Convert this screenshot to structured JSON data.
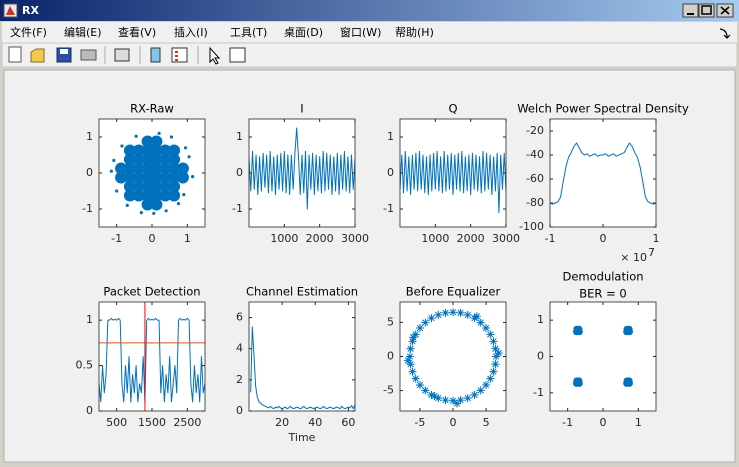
{
  "window": {
    "title": "RX",
    "menu": [
      "文件(F)",
      "编辑(E)",
      "查看(V)",
      "插入(I)",
      "工具(T)",
      "桌面(D)",
      "窗口(W)",
      "帮助(H)"
    ]
  },
  "chart_data": [
    {
      "type": "scatter",
      "title": "RX-Raw",
      "xlim": [
        -1.5,
        1.5
      ],
      "xticks": [
        -1,
        0,
        1
      ],
      "ylim": [
        -1.5,
        1.5
      ],
      "yticks": [
        -1,
        0,
        1
      ],
      "series": [
        {
          "color": "#0072bd",
          "marker": "dot",
          "marker_size": 6,
          "x": [
            0.125,
            0.125,
            0.125,
            0.125,
            0.375,
            0.375,
            0.375,
            0.625,
            0.625,
            0.625,
            0.875,
            -0.125,
            -0.125,
            -0.125,
            -0.125,
            -0.375,
            -0.375,
            -0.375,
            -0.625,
            -0.625,
            -0.625,
            -0.875,
            0.125,
            0.125,
            0.125,
            0.125,
            0.375,
            0.375,
            0.375,
            0.625,
            0.625,
            0.625,
            0.875,
            -0.125,
            -0.125,
            -0.125,
            -0.125,
            -0.375,
            -0.375,
            -0.375,
            -0.625,
            -0.625,
            -0.625,
            -0.875
          ],
          "values": [
            0.125,
            0.375,
            0.625,
            0.875,
            0.125,
            0.375,
            0.625,
            0.125,
            0.375,
            0.625,
            0.125,
            0.125,
            0.375,
            0.625,
            0.875,
            0.125,
            0.375,
            0.625,
            0.125,
            0.375,
            0.625,
            0.125,
            -0.125,
            -0.375,
            -0.625,
            -0.875,
            -0.125,
            -0.375,
            -0.625,
            -0.125,
            -0.375,
            -0.625,
            -0.125,
            -0.125,
            -0.375,
            -0.625,
            -0.875,
            -0.125,
            -0.375,
            -0.625,
            -0.125,
            -0.375,
            -0.625,
            -0.125
          ]
        },
        {
          "color": "#0072bd",
          "marker": "dot",
          "marker_size": 1.6,
          "x": [
            1.05,
            -1.08,
            0.55,
            -0.45,
            0.2,
            -0.85,
            0.9,
            -1.0,
            0.4,
            -0.3,
            0.75,
            -0.7,
            1.15,
            -1.15,
            0.95,
            0.05
          ],
          "values": [
            0.45,
            0.35,
            1.0,
            1.02,
            1.1,
            0.75,
            -0.6,
            -0.5,
            -1.05,
            -1.1,
            -0.85,
            -0.9,
            -0.1,
            0.05,
            0.7,
            -1.12
          ]
        }
      ]
    },
    {
      "type": "line",
      "title": "I",
      "xlim": [
        0,
        3000
      ],
      "xticks": [
        1000,
        2000,
        3000
      ],
      "ylim": [
        -1.5,
        1.5
      ],
      "yticks": [
        -1,
        0,
        1
      ],
      "series": [
        {
          "color": "#0072bd",
          "x": [
            0,
            50,
            100,
            150,
            200,
            250,
            300,
            350,
            400,
            450,
            500,
            550,
            600,
            650,
            700,
            750,
            800,
            850,
            900,
            950,
            1000,
            1050,
            1100,
            1150,
            1200,
            1250,
            1300,
            1350,
            1400,
            1450,
            1500,
            1550,
            1600,
            1650,
            1700,
            1750,
            1800,
            1850,
            1900,
            1950,
            2000,
            2050,
            2100,
            2150,
            2200,
            2250,
            2300,
            2350,
            2400,
            2450,
            2500,
            2550,
            2600,
            2650,
            2700,
            2750,
            2800,
            2850,
            2900,
            2950,
            3000
          ],
          "values": [
            0.4,
            -0.5,
            0.6,
            -0.45,
            0.5,
            -0.6,
            0.45,
            -0.5,
            0.55,
            -0.4,
            0.5,
            -0.55,
            0.6,
            -0.5,
            0.45,
            -0.6,
            0.5,
            -0.45,
            0.55,
            -0.5,
            0.6,
            -0.55,
            0.5,
            -0.6,
            0.5,
            -0.45,
            0.55,
            1.25,
            0.45,
            -0.6,
            0.5,
            -0.55,
            0.6,
            -1.0,
            0.5,
            -0.45,
            0.55,
            -0.6,
            0.5,
            -0.5,
            0.45,
            -0.55,
            0.6,
            -0.5,
            0.55,
            -0.45,
            0.5,
            -0.6,
            0.45,
            -0.5,
            0.55,
            -0.6,
            0.5,
            -0.45,
            0.6,
            -0.5,
            0.45,
            -0.55,
            0.5,
            -0.45,
            0.4
          ]
        }
      ]
    },
    {
      "type": "line",
      "title": "Q",
      "xlim": [
        0,
        3000
      ],
      "xticks": [
        1000,
        2000,
        3000
      ],
      "ylim": [
        -1.5,
        1.5
      ],
      "yticks": [
        -1,
        0,
        1
      ],
      "series": [
        {
          "color": "#0072bd",
          "x": [
            0,
            50,
            100,
            150,
            200,
            250,
            300,
            350,
            400,
            450,
            500,
            550,
            600,
            650,
            700,
            750,
            800,
            850,
            900,
            950,
            1000,
            1050,
            1100,
            1150,
            1200,
            1250,
            1300,
            1350,
            1400,
            1450,
            1500,
            1550,
            1600,
            1650,
            1700,
            1750,
            1800,
            1850,
            1900,
            1950,
            2000,
            2050,
            2100,
            2150,
            2200,
            2250,
            2300,
            2350,
            2400,
            2450,
            2500,
            2550,
            2600,
            2650,
            2700,
            2750,
            2800,
            2850,
            2900,
            2950,
            3000
          ],
          "values": [
            -0.45,
            0.5,
            -0.55,
            0.6,
            -0.5,
            0.45,
            -0.6,
            0.5,
            -0.45,
            0.55,
            -0.5,
            0.6,
            -0.45,
            0.5,
            -0.55,
            0.45,
            -0.6,
            0.5,
            -0.5,
            0.55,
            -0.45,
            0.6,
            -0.5,
            0.45,
            -0.55,
            0.6,
            -0.5,
            0.5,
            -0.45,
            0.55,
            -0.6,
            0.5,
            -0.45,
            0.55,
            -0.5,
            0.6,
            -0.55,
            0.45,
            -0.5,
            0.5,
            -0.6,
            0.55,
            -0.45,
            0.5,
            -0.5,
            0.45,
            -0.55,
            0.6,
            -0.5,
            0.55,
            -0.45,
            0.5,
            -0.6,
            0.45,
            -0.5,
            0.55,
            -1.1,
            0.5,
            -0.45,
            0.55,
            -0.5
          ]
        }
      ]
    },
    {
      "type": "line",
      "title": "Welch Power Spectral Density",
      "xlim": [
        -1,
        1
      ],
      "xticks": [
        -1,
        0,
        1
      ],
      "ylim": [
        -100,
        -10
      ],
      "yticks": [
        -100,
        -80,
        -60,
        -40,
        -20
      ],
      "x_exponent_base": "× 10",
      "x_exponent": 7,
      "series": [
        {
          "color": "#0072bd",
          "x": [
            -1,
            -0.95,
            -0.9,
            -0.85,
            -0.8,
            -0.75,
            -0.7,
            -0.65,
            -0.6,
            -0.55,
            -0.5,
            -0.45,
            -0.4,
            -0.35,
            -0.3,
            -0.25,
            -0.2,
            -0.15,
            -0.1,
            -0.05,
            0,
            0.05,
            0.1,
            0.15,
            0.2,
            0.25,
            0.3,
            0.35,
            0.4,
            0.45,
            0.5,
            0.55,
            0.6,
            0.65,
            0.7,
            0.75,
            0.8,
            0.85,
            0.9,
            0.95,
            1
          ],
          "values": [
            -80,
            -81,
            -80,
            -79,
            -75,
            -62,
            -50,
            -42,
            -38,
            -33,
            -30,
            -34,
            -38,
            -40,
            -39,
            -41,
            -40,
            -39,
            -41,
            -40,
            -40,
            -39,
            -41,
            -40,
            -39,
            -41,
            -40,
            -39,
            -38,
            -34,
            -30,
            -33,
            -38,
            -42,
            -50,
            -62,
            -75,
            -79,
            -80,
            -81,
            -80
          ]
        }
      ]
    },
    {
      "type": "line",
      "title": "Packet Detection",
      "xlim": [
        0,
        3000
      ],
      "xticks": [
        500,
        1500,
        2500
      ],
      "ylim": [
        0,
        1.2
      ],
      "yticks": [
        0,
        0.5,
        1
      ],
      "series": [
        {
          "color": "#0072bd",
          "x": [
            0,
            50,
            100,
            150,
            200,
            250,
            300,
            350,
            400,
            450,
            500,
            550,
            600,
            650,
            700,
            750,
            800,
            850,
            900,
            950,
            1000,
            1050,
            1100,
            1150,
            1200,
            1250,
            1300,
            1350,
            1400,
            1450,
            1500,
            1550,
            1600,
            1650,
            1700,
            1750,
            1800,
            1850,
            1900,
            1950,
            2000,
            2050,
            2100,
            2150,
            2200,
            2250,
            2300,
            2350,
            2400,
            2450,
            2500,
            2550,
            2600,
            2650,
            2700,
            2750,
            2800,
            2850,
            2900,
            2950,
            3000
          ],
          "values": [
            0.3,
            0.1,
            0.5,
            0.2,
            0.4,
            1.0,
            1.0,
            1.02,
            1.0,
            1.01,
            1.0,
            1.02,
            1.0,
            0.3,
            0.1,
            0.5,
            0.2,
            0.6,
            0.1,
            0.4,
            0.2,
            0.5,
            0.1,
            0.3,
            0.2,
            0.6,
            0.1,
            1.0,
            1.02,
            1.0,
            1.01,
            1.0,
            1.02,
            1.0,
            1.0,
            0.2,
            0.5,
            0.1,
            0.4,
            0.2,
            0.6,
            0.1,
            0.3,
            0.5,
            0.2,
            1.0,
            1.02,
            1.0,
            1.01,
            1.0,
            1.02,
            1.0,
            0.3,
            0.1,
            0.5,
            0.2,
            0.4,
            0.1,
            0.6,
            0.2,
            0.3
          ]
        },
        {
          "color": "#d95319",
          "x": [
            0,
            3000
          ],
          "values": [
            0.75,
            0.75
          ]
        },
        {
          "color": "#ff0000",
          "x": [
            1300,
            1300
          ],
          "values": [
            0,
            1.2
          ]
        }
      ]
    },
    {
      "type": "line",
      "title": "Channel Estimation",
      "xlabel": "Time",
      "xlim": [
        0,
        64
      ],
      "xticks": [
        20,
        40,
        60
      ],
      "ylim": [
        0,
        7
      ],
      "yticks": [
        0,
        2,
        4,
        6
      ],
      "series": [
        {
          "color": "#0072bd",
          "x": [
            1,
            2,
            3,
            4,
            5,
            6,
            7,
            8,
            9,
            10,
            11,
            12,
            13,
            14,
            15,
            16,
            17,
            18,
            19,
            20,
            21,
            22,
            23,
            24,
            25,
            26,
            27,
            28,
            29,
            30,
            31,
            32,
            33,
            34,
            35,
            36,
            37,
            38,
            39,
            40,
            41,
            42,
            43,
            44,
            45,
            46,
            47,
            48,
            49,
            50,
            51,
            52,
            53,
            54,
            55,
            56,
            57,
            58,
            59,
            60,
            61,
            62,
            63,
            64
          ],
          "values": [
            1.2,
            5.4,
            3.6,
            1.6,
            0.9,
            0.6,
            0.5,
            0.4,
            0.35,
            0.3,
            0.25,
            0.2,
            0.3,
            0.2,
            0.15,
            0.25,
            0.2,
            0.3,
            0.2,
            0.15,
            0.2,
            0.25,
            0.15,
            0.2,
            0.3,
            0.2,
            0.15,
            0.2,
            0.25,
            0.2,
            0.15,
            0.2,
            0.3,
            0.2,
            0.15,
            0.2,
            0.25,
            0.2,
            0.15,
            0.2,
            0.25,
            0.2,
            0.15,
            0.2,
            0.3,
            0.2,
            0.15,
            0.2,
            0.25,
            0.2,
            0.15,
            0.2,
            0.25,
            0.2,
            0.15,
            0.3,
            0.2,
            0.15,
            0.2,
            0.25,
            0.2,
            0.35,
            0.15,
            0.4
          ]
        }
      ]
    },
    {
      "type": "scatter",
      "title": "Before Equalizer",
      "xlim": [
        -8,
        8
      ],
      "xticks": [
        -5,
        0,
        5
      ],
      "ylim": [
        -8,
        8
      ],
      "yticks": [
        -5,
        0,
        5
      ],
      "series": [
        {
          "color": "#0072bd",
          "marker": "asterisk",
          "marker_size": 4,
          "x": [
            6.5,
            6.4,
            6.11,
            5.63,
            4.98,
            4.18,
            3.25,
            2.22,
            1.13,
            0,
            -1.13,
            -2.22,
            -3.25,
            -4.18,
            -4.98,
            -5.63,
            -6.11,
            -6.4,
            -6.5,
            -6.4,
            -6.11,
            -5.63,
            -4.98,
            -4.18,
            -3.25,
            -2.22,
            -1.13,
            0,
            1.13,
            2.22,
            3.25,
            4.18,
            4.98,
            5.63,
            6.11,
            6.4,
            6.9,
            -6.0,
            0.6,
            -2.8,
            3.6,
            -6.8
          ],
          "values": [
            0,
            1.13,
            2.22,
            3.25,
            4.18,
            4.98,
            5.63,
            6.11,
            6.4,
            6.5,
            6.4,
            6.11,
            5.63,
            4.98,
            4.18,
            3.25,
            2.22,
            1.13,
            0,
            -1.13,
            -2.22,
            -3.25,
            -4.18,
            -4.98,
            -5.63,
            -6.11,
            -6.4,
            -6.5,
            -6.4,
            -6.11,
            -5.63,
            -4.98,
            -4.18,
            -3.25,
            -2.22,
            -1.13,
            0.5,
            2.8,
            -6.9,
            -5.8,
            5.9,
            -0.6
          ]
        }
      ]
    },
    {
      "type": "scatter",
      "title": "Demodulation",
      "subtitle": "BER = 0",
      "xlim": [
        -1.5,
        1.5
      ],
      "xticks": [
        -1,
        0,
        1
      ],
      "ylim": [
        -1.5,
        1.5
      ],
      "yticks": [
        -1,
        0,
        1
      ],
      "series": [
        {
          "color": "#0072bd",
          "marker": "dot",
          "marker_size": 3.5,
          "x": [
            0.71,
            0.75,
            0.68,
            0.74,
            0.67,
            -0.71,
            -0.67,
            -0.74,
            -0.68,
            -0.75,
            -0.71,
            -0.67,
            -0.74,
            -0.68,
            -0.75,
            0.71,
            0.75,
            0.68,
            0.74,
            0.67
          ],
          "values": [
            0.71,
            0.68,
            0.75,
            0.75,
            0.68,
            0.71,
            0.68,
            0.75,
            0.75,
            0.68,
            -0.71,
            -0.74,
            -0.67,
            -0.67,
            -0.74,
            -0.71,
            -0.74,
            -0.67,
            -0.67,
            -0.74
          ]
        }
      ]
    }
  ]
}
